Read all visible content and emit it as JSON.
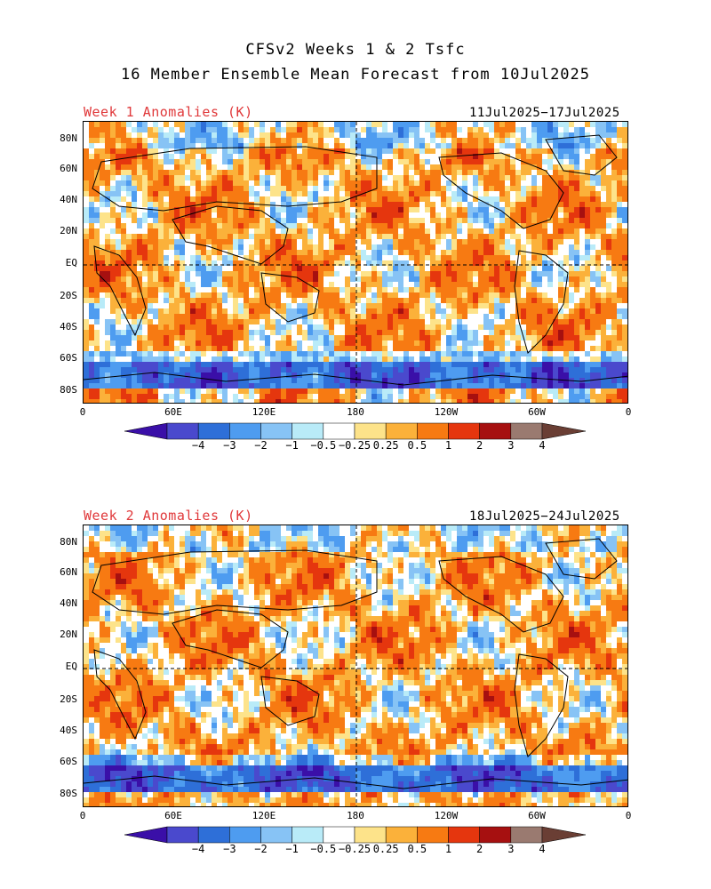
{
  "title_line1": "CFSv2 Weeks 1 & 2 Tsfc",
  "title_line2": "16 Member Ensemble Mean Forecast from 10Jul2025",
  "panels": [
    {
      "label": "Week 1 Anomalies (K)",
      "dates": "11Jul2025−17Jul2025"
    },
    {
      "label": "Week 2 Anomalies (K)",
      "dates": "18Jul2025−24Jul2025"
    }
  ],
  "lat_ticks": [
    "80N",
    "60N",
    "40N",
    "20N",
    "EQ",
    "20S",
    "40S",
    "60S",
    "80S"
  ],
  "lon_ticks": [
    "0",
    "60E",
    "120E",
    "180",
    "120W",
    "60W",
    "0"
  ],
  "colorbar": {
    "labels": [
      "−4",
      "−3",
      "−2",
      "−1",
      "−0.5",
      "−0.25",
      "0.25",
      "0.5",
      "1",
      "2",
      "3",
      "4"
    ],
    "colors": [
      "#3a0fa8",
      "#4a49cd",
      "#2e6fd8",
      "#4e9cf0",
      "#87c3f5",
      "#b9ebf8",
      "#ffffff",
      "#fde38a",
      "#fbb13a",
      "#f77a12",
      "#e5360e",
      "#a61010",
      "#9a7a70",
      "#6a3e34"
    ]
  }
}
